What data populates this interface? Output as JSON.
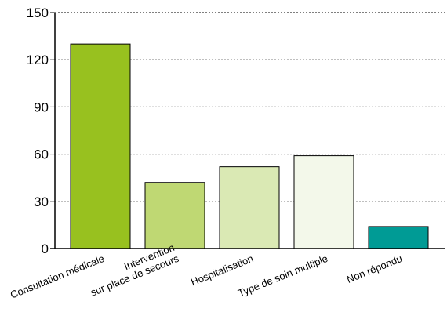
{
  "chart_data": {
    "type": "bar",
    "title": "",
    "xlabel": "",
    "ylabel": "",
    "ylim": [
      0,
      150
    ],
    "yticks": [
      0,
      30,
      60,
      90,
      120,
      150
    ],
    "grid": true,
    "categories": [
      [
        "Consultation médicale"
      ],
      [
        "Intervention",
        "sur place de secours"
      ],
      [
        "Hospitalisation"
      ],
      [
        "Type de soin multiple"
      ],
      [
        "Non répondu"
      ]
    ],
    "values": [
      130,
      42,
      52,
      59,
      14
    ],
    "colors": [
      "#98c11f",
      "#bfd873",
      "#dae9b4",
      "#f3f8ea",
      "#009b95"
    ]
  }
}
